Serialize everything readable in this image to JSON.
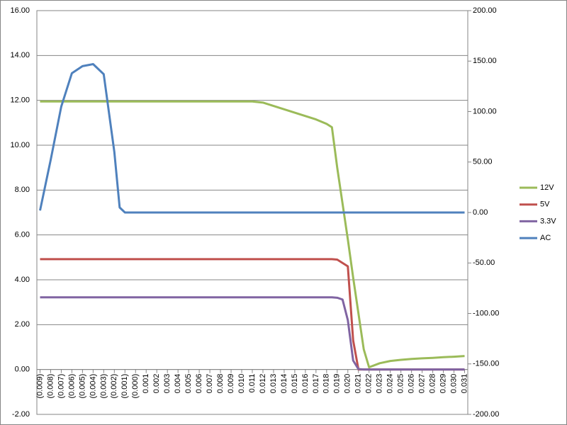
{
  "chart_data": {
    "type": "line",
    "legend": "right",
    "grid": true,
    "x": [
      -0.009,
      -0.008,
      -0.007,
      -0.006,
      -0.005,
      -0.004,
      -0.003,
      -0.002,
      -0.0015,
      -0.001,
      0,
      0.001,
      0.002,
      0.003,
      0.004,
      0.005,
      0.006,
      0.007,
      0.008,
      0.009,
      0.01,
      0.011,
      0.012,
      0.013,
      0.014,
      0.015,
      0.016,
      0.017,
      0.018,
      0.0185,
      0.019,
      0.0195,
      0.02,
      0.0205,
      0.021,
      0.0215,
      0.022,
      0.023,
      0.024,
      0.025,
      0.026,
      0.027,
      0.028,
      0.029,
      0.03,
      0.031
    ],
    "xlim": [
      -0.0093,
      0.0313
    ],
    "xticks": [
      {
        "value": -0.009,
        "label": "(0.009)"
      },
      {
        "value": -0.008,
        "label": "(0.008)"
      },
      {
        "value": -0.007,
        "label": "(0.007)"
      },
      {
        "value": -0.006,
        "label": "(0.006)"
      },
      {
        "value": -0.005,
        "label": "(0.005)"
      },
      {
        "value": -0.004,
        "label": "(0.004)"
      },
      {
        "value": -0.003,
        "label": "(0.003)"
      },
      {
        "value": -0.002,
        "label": "(0.002)"
      },
      {
        "value": -0.001,
        "label": "(0.001)"
      },
      {
        "value": 0,
        "label": "(0.000)"
      },
      {
        "value": 0.001,
        "label": "0.001"
      },
      {
        "value": 0.002,
        "label": "0.002"
      },
      {
        "value": 0.003,
        "label": "0.003"
      },
      {
        "value": 0.004,
        "label": "0.004"
      },
      {
        "value": 0.005,
        "label": "0.005"
      },
      {
        "value": 0.006,
        "label": "0.006"
      },
      {
        "value": 0.007,
        "label": "0.007"
      },
      {
        "value": 0.008,
        "label": "0.008"
      },
      {
        "value": 0.009,
        "label": "0.009"
      },
      {
        "value": 0.01,
        "label": "0.010"
      },
      {
        "value": 0.011,
        "label": "0.011"
      },
      {
        "value": 0.012,
        "label": "0.012"
      },
      {
        "value": 0.013,
        "label": "0.013"
      },
      {
        "value": 0.014,
        "label": "0.014"
      },
      {
        "value": 0.015,
        "label": "0.015"
      },
      {
        "value": 0.016,
        "label": "0.016"
      },
      {
        "value": 0.017,
        "label": "0.017"
      },
      {
        "value": 0.018,
        "label": "0.018"
      },
      {
        "value": 0.019,
        "label": "0.019"
      },
      {
        "value": 0.02,
        "label": "0.020"
      },
      {
        "value": 0.021,
        "label": "0.021"
      },
      {
        "value": 0.022,
        "label": "0.022"
      },
      {
        "value": 0.023,
        "label": "0.023"
      },
      {
        "value": 0.024,
        "label": "0.024"
      },
      {
        "value": 0.025,
        "label": "0.025"
      },
      {
        "value": 0.026,
        "label": "0.026"
      },
      {
        "value": 0.027,
        "label": "0.027"
      },
      {
        "value": 0.028,
        "label": "0.028"
      },
      {
        "value": 0.029,
        "label": "0.029"
      },
      {
        "value": 0.03,
        "label": "0.030"
      },
      {
        "value": 0.031,
        "label": "0.031"
      }
    ],
    "ylim": [
      -2,
      16
    ],
    "yticks": [
      {
        "value": -2,
        "label": "-2.00"
      },
      {
        "value": 0,
        "label": "0.00"
      },
      {
        "value": 2,
        "label": "2.00"
      },
      {
        "value": 4,
        "label": "4.00"
      },
      {
        "value": 6,
        "label": "6.00"
      },
      {
        "value": 8,
        "label": "8.00"
      },
      {
        "value": 10,
        "label": "10.00"
      },
      {
        "value": 12,
        "label": "12.00"
      },
      {
        "value": 14,
        "label": "14.00"
      },
      {
        "value": 16,
        "label": "16.00"
      }
    ],
    "y2lim": [
      -200,
      200
    ],
    "y2ticks": [
      {
        "value": -200,
        "label": "-200.00"
      },
      {
        "value": -150,
        "label": "-150.00"
      },
      {
        "value": -100,
        "label": "-100.00"
      },
      {
        "value": -50,
        "label": "-50.00"
      },
      {
        "value": 0,
        "label": "0.00"
      },
      {
        "value": 50,
        "label": "50.00"
      },
      {
        "value": 100,
        "label": "100.00"
      },
      {
        "value": 150,
        "label": "150.00"
      },
      {
        "value": 200,
        "label": "200.00"
      }
    ],
    "series": [
      {
        "name": "12V",
        "color": "#9bbb59",
        "values": [
          11.95,
          11.95,
          11.95,
          11.95,
          11.95,
          11.95,
          11.95,
          11.95,
          11.95,
          11.95,
          11.95,
          11.95,
          11.95,
          11.95,
          11.95,
          11.95,
          11.95,
          11.95,
          11.95,
          11.95,
          11.95,
          11.95,
          11.9,
          11.75,
          11.6,
          11.45,
          11.3,
          11.15,
          10.95,
          10.8,
          9.0,
          7.4,
          5.8,
          4.1,
          2.5,
          0.9,
          0.1,
          0.28,
          0.38,
          0.43,
          0.47,
          0.5,
          0.52,
          0.55,
          0.57,
          0.6
        ]
      },
      {
        "name": "5V",
        "color": "#c0504d",
        "values": [
          4.92,
          4.92,
          4.92,
          4.92,
          4.92,
          4.92,
          4.92,
          4.92,
          4.92,
          4.92,
          4.92,
          4.92,
          4.92,
          4.92,
          4.92,
          4.92,
          4.92,
          4.92,
          4.92,
          4.92,
          4.92,
          4.92,
          4.92,
          4.92,
          4.92,
          4.92,
          4.92,
          4.92,
          4.92,
          4.92,
          4.9,
          4.75,
          4.6,
          1.3,
          0,
          0,
          0,
          0,
          0,
          0,
          0,
          0,
          0,
          0,
          0,
          0
        ]
      },
      {
        "name": "3.3V",
        "color": "#8064a2",
        "values": [
          3.22,
          3.22,
          3.22,
          3.22,
          3.22,
          3.22,
          3.22,
          3.22,
          3.22,
          3.22,
          3.22,
          3.22,
          3.22,
          3.22,
          3.22,
          3.22,
          3.22,
          3.22,
          3.22,
          3.22,
          3.22,
          3.22,
          3.22,
          3.22,
          3.22,
          3.22,
          3.22,
          3.22,
          3.22,
          3.22,
          3.2,
          3.12,
          2.2,
          0.4,
          0.02,
          0,
          0,
          0,
          0,
          0,
          0,
          0,
          0,
          0,
          0,
          0
        ]
      },
      {
        "name": "AC",
        "color": "#4f81bd",
        "axis": "y2",
        "values": [
          2,
          52,
          105,
          138,
          145,
          147,
          137,
          60,
          5,
          0,
          0,
          0,
          0,
          0,
          0,
          0,
          0,
          0,
          0,
          0,
          0,
          0,
          0,
          0,
          0,
          0,
          0,
          0,
          0,
          0,
          0,
          0,
          0,
          0,
          0,
          0,
          0,
          0,
          0,
          0,
          0,
          0,
          0,
          0,
          0,
          0
        ]
      }
    ]
  }
}
